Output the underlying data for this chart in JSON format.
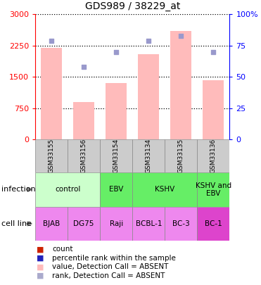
{
  "title": "GDS989 / 38229_at",
  "samples": [
    "GSM33155",
    "GSM33156",
    "GSM33154",
    "GSM33134",
    "GSM33135",
    "GSM33136"
  ],
  "bar_values": [
    2200,
    900,
    1350,
    2050,
    2600,
    1420
  ],
  "rank_values": [
    79,
    58,
    70,
    79,
    83,
    70
  ],
  "bar_color": "#ffbbbb",
  "rank_dot_color": "#9999cc",
  "ylim_left": [
    0,
    3000
  ],
  "ylim_right": [
    0,
    100
  ],
  "yticks_left": [
    0,
    750,
    1500,
    2250,
    3000
  ],
  "ytick_labels_left": [
    "0",
    "750",
    "1500",
    "2250",
    "3000"
  ],
  "yticks_right": [
    0,
    25,
    50,
    75,
    100
  ],
  "ytick_labels_right": [
    "0",
    "25",
    "50",
    "75",
    "100%"
  ],
  "infection_data": [
    {
      "label": "control",
      "start": 0,
      "end": 2,
      "color": "#ccffcc"
    },
    {
      "label": "EBV",
      "start": 2,
      "end": 3,
      "color": "#66ee66"
    },
    {
      "label": "KSHV",
      "start": 3,
      "end": 5,
      "color": "#66ee66"
    },
    {
      "label": "KSHV and\nEBV",
      "start": 5,
      "end": 6,
      "color": "#66ee66"
    }
  ],
  "cell_lines": [
    "BJAB",
    "DG75",
    "Raji",
    "BCBL-1",
    "BC-3",
    "BC-1"
  ],
  "cell_line_colors": [
    "#ee88ee",
    "#ee88ee",
    "#ee88ee",
    "#ee88ee",
    "#ee88ee",
    "#dd44cc"
  ],
  "sample_row_color": "#cccccc",
  "legend_colors": [
    "#cc2200",
    "#2222bb",
    "#ffbbbb",
    "#aaaacc"
  ],
  "legend_labels": [
    "count",
    "percentile rank within the sample",
    "value, Detection Call = ABSENT",
    "rank, Detection Call = ABSENT"
  ],
  "row_label_infection": "infection",
  "row_label_cell": "cell line"
}
